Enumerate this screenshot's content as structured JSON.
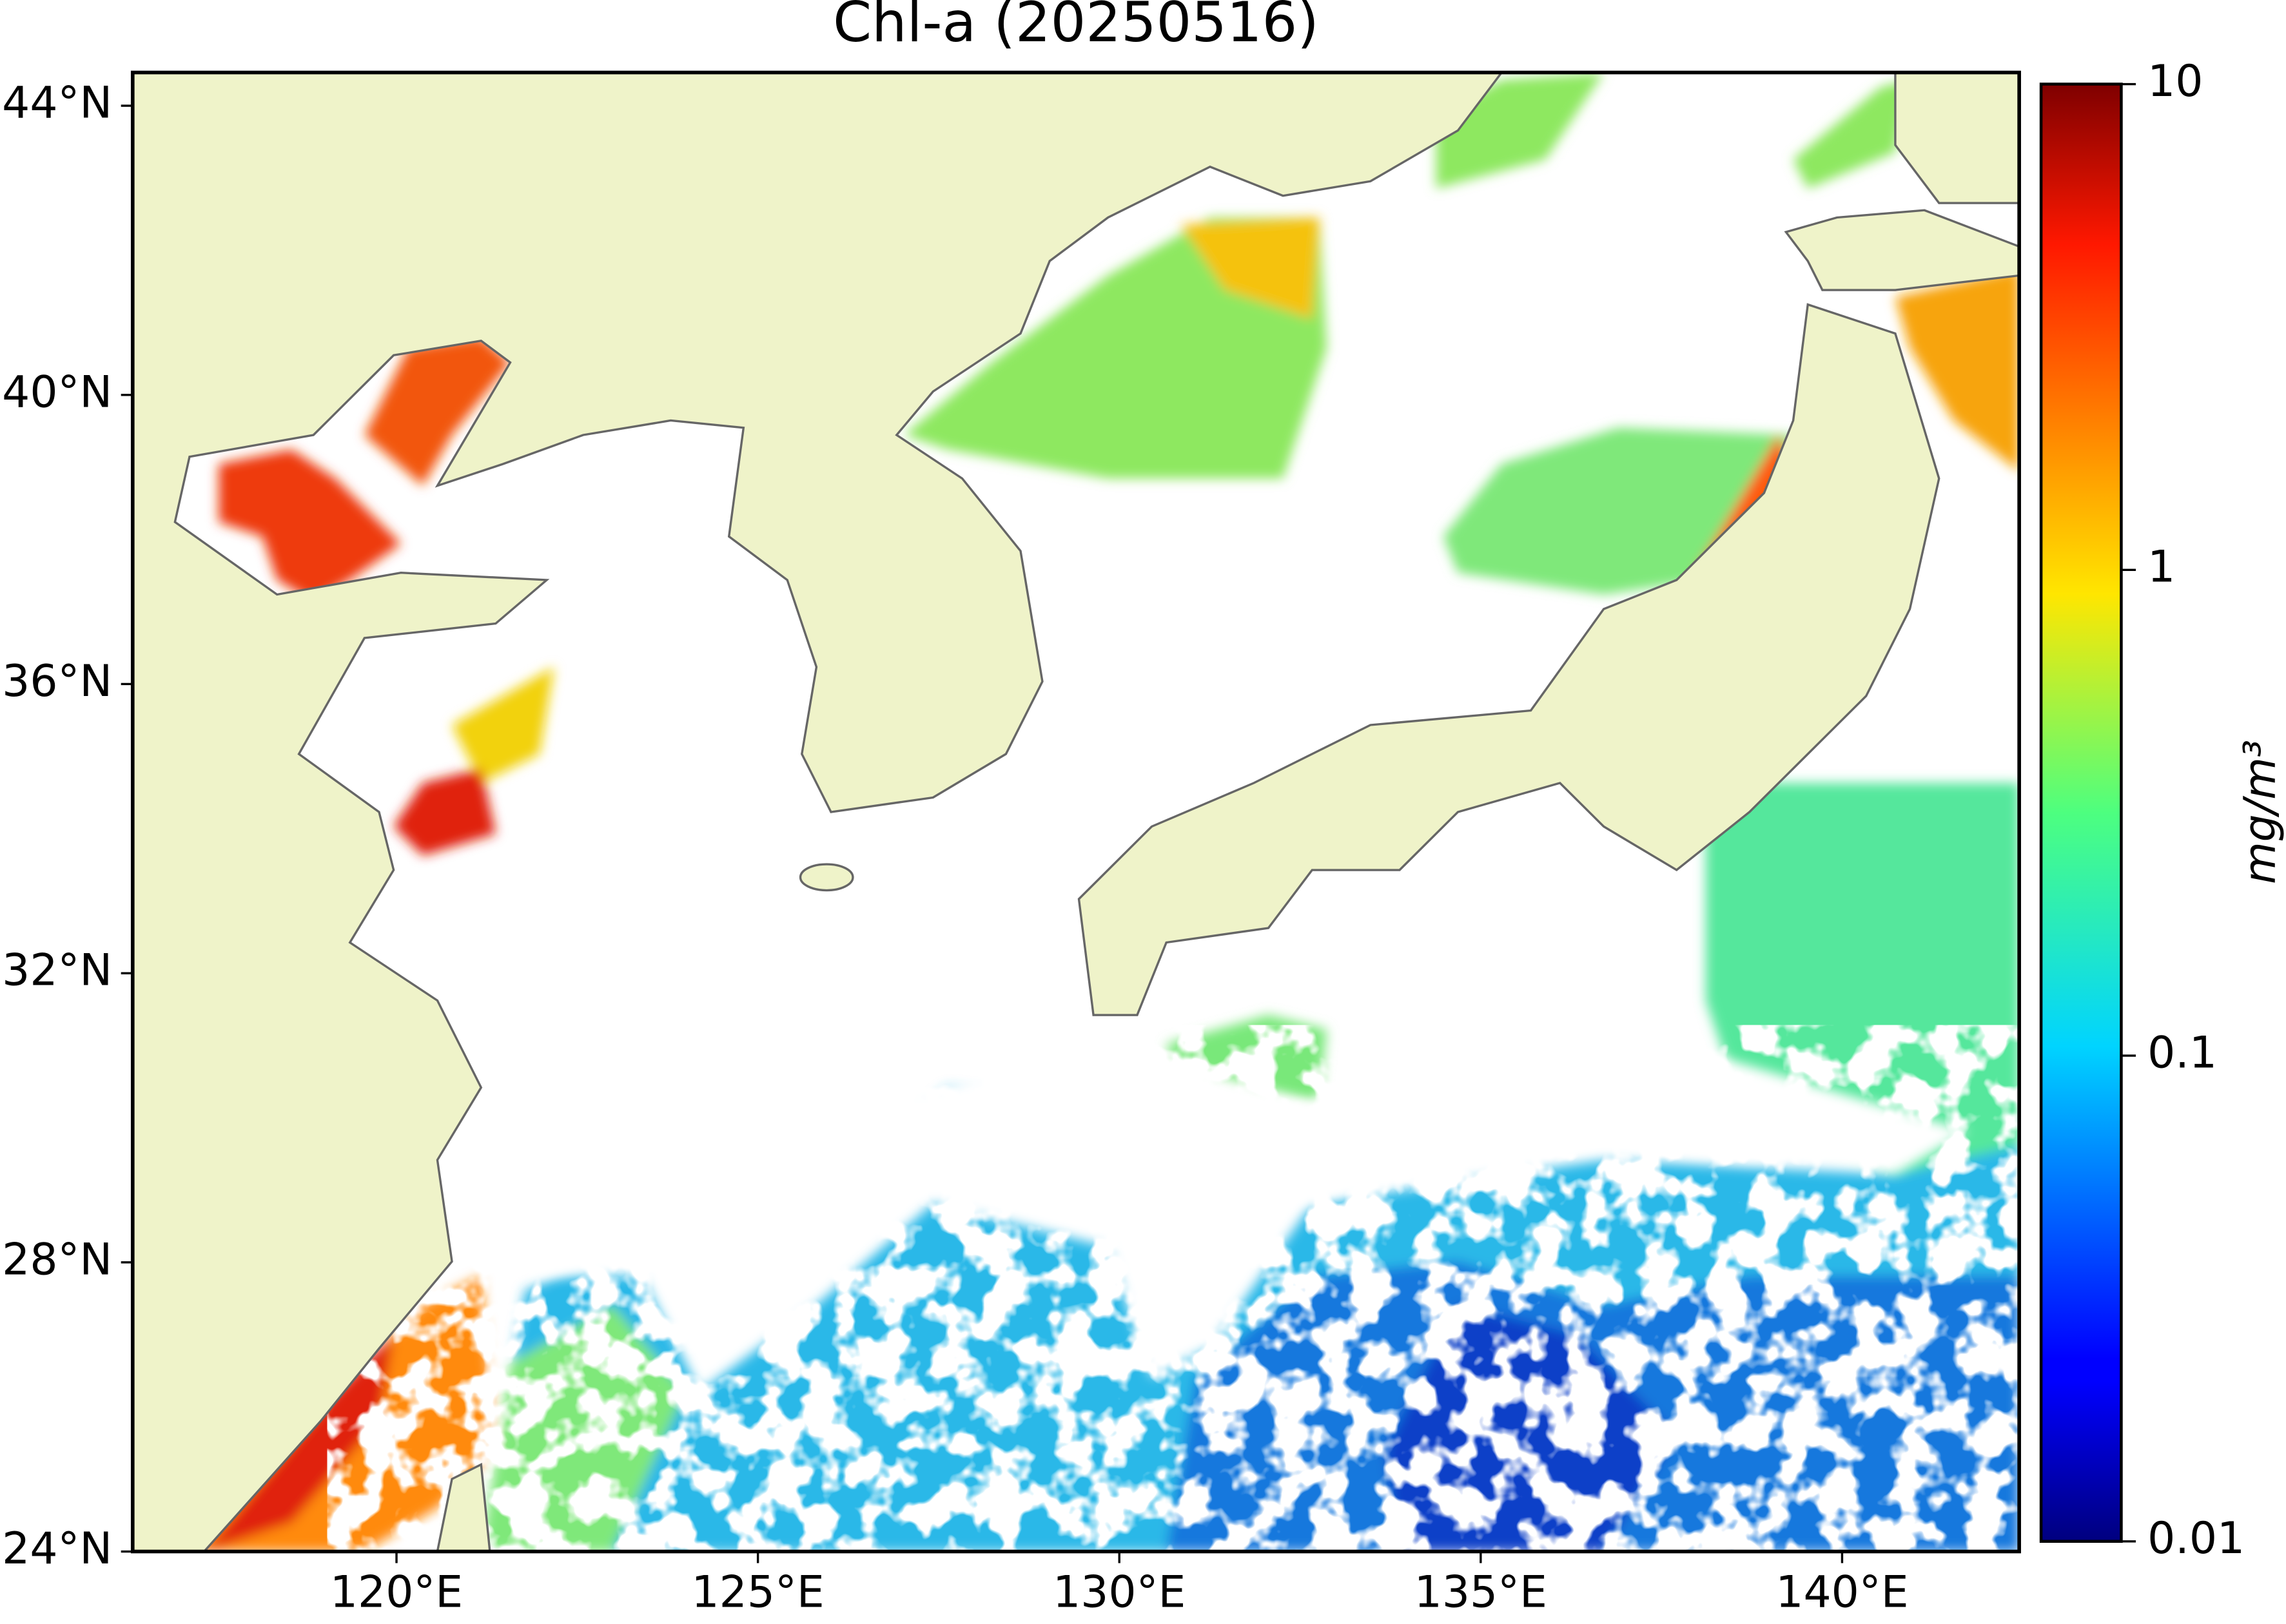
{
  "map": {
    "type": "raster-map",
    "title": "Chl-a (20250516)",
    "xlim": [
      116.35,
      142.45
    ],
    "ylim": [
      24,
      44.46
    ],
    "xticks": [
      {
        "value": 120,
        "label": "120°E"
      },
      {
        "value": 125,
        "label": "125°E"
      },
      {
        "value": 130,
        "label": "130°E"
      },
      {
        "value": 135,
        "label": "135°E"
      },
      {
        "value": 140,
        "label": "140°E"
      }
    ],
    "yticks": [
      {
        "value": 24,
        "label": "24°N"
      },
      {
        "value": 28,
        "label": "28°N"
      },
      {
        "value": 32,
        "label": "32°N"
      },
      {
        "value": 36,
        "label": "36°N"
      },
      {
        "value": 40,
        "label": "40°N"
      },
      {
        "value": 44,
        "label": "44°N"
      }
    ],
    "colorbar": {
      "label": "mg/m³",
      "scale": "log",
      "colormap": "jet",
      "lim": [
        0.01,
        10
      ],
      "ticks": [
        0.01,
        0.1,
        1,
        10
      ]
    }
  }
}
